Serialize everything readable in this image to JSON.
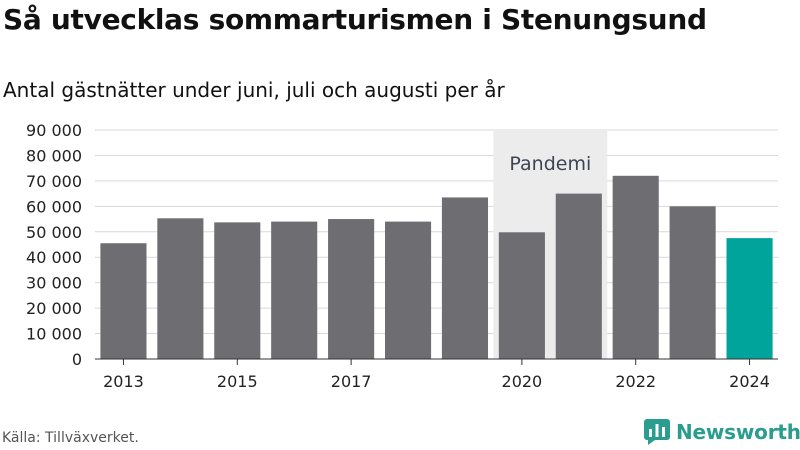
{
  "title": "Så utvecklas sommarturismen i Stenungsund",
  "subtitle": "Antal gästnätter under juni, juli och augusti per år",
  "source": "Källa: Tillväxverket.",
  "brand": {
    "name": "Newsworthy",
    "color": "#2a9d8f"
  },
  "colors": {
    "bar": "#6e6d72",
    "highlight": "#00a49a",
    "shade": "#ececec",
    "grid": "#d9d9d9"
  },
  "chart_data": {
    "type": "bar",
    "title": "Så utvecklas sommarturismen i Stenungsund",
    "subtitle": "Antal gästnätter under juni, juli och augusti per år",
    "categories": [
      "2013",
      "2014",
      "2015",
      "2016",
      "2017",
      "2018",
      "2019",
      "2020",
      "2021",
      "2022",
      "2023",
      "2024"
    ],
    "values": [
      45500,
      55300,
      53700,
      54000,
      55000,
      54000,
      63500,
      49800,
      65000,
      72000,
      60000,
      47500
    ],
    "highlight_category": "2024",
    "xtick_labels": [
      "2013",
      "2015",
      "2017",
      "2020",
      "2022",
      "2024"
    ],
    "yticks": [
      0,
      10000,
      20000,
      30000,
      40000,
      50000,
      60000,
      70000,
      80000,
      90000
    ],
    "ytick_labels": [
      "0",
      "10 000",
      "20 000",
      "30 000",
      "40 000",
      "50 000",
      "60 000",
      "70 000",
      "80 000",
      "90 000"
    ],
    "ylim": [
      0,
      90000
    ],
    "grid": true,
    "annotation": {
      "label": "Pandemi",
      "from": "2020",
      "to": "2021"
    }
  }
}
